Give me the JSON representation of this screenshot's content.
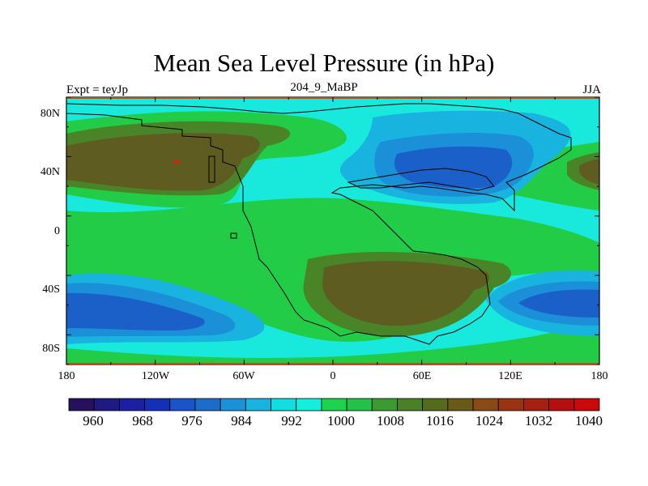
{
  "title": "Mean Sea Level Pressure (in hPa)",
  "left_label": "Expt = teyJp",
  "center_label": "204_9_MaBP",
  "right_label": "JJA",
  "lat_ticks": [
    "80N",
    "40N",
    "0",
    "40S",
    "80S"
  ],
  "lon_ticks": [
    "180",
    "120W",
    "60W",
    "0",
    "60E",
    "120E",
    "180"
  ],
  "colorbar": {
    "labels": [
      "960",
      "968",
      "976",
      "984",
      "992",
      "1000",
      "1008",
      "1016",
      "1024",
      "1032",
      "1040"
    ],
    "colors": [
      "#26125a",
      "#1f1a82",
      "#1b1fa0",
      "#1530b8",
      "#1b54c8",
      "#1b6ec8",
      "#1b92d8",
      "#1ab3e0",
      "#11dede",
      "#16eedc",
      "#1cd24e",
      "#24c24a",
      "#3c9a32",
      "#4a8028",
      "#566a1e",
      "#6a5a1a",
      "#8a4a16",
      "#983414",
      "#a62012",
      "#b41010",
      "#c80a0a"
    ]
  },
  "fields": {
    "ocean": "#19e8dc",
    "green": "#22cc46",
    "darkgreen": "#4a8428",
    "brown": "#5f5c22",
    "lightblue": "#19b3df",
    "blue": "#1b8fd8",
    "deepblue": "#1a60c8",
    "red": "#c82c0e"
  }
}
